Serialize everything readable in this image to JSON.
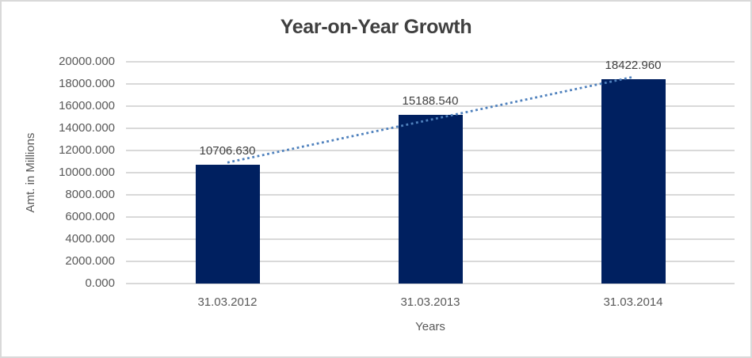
{
  "window": {
    "background": "#FFFFFF",
    "border_color": "#D9D9D9"
  },
  "chart_data": {
    "type": "bar",
    "title": "Year-on-Year Growth",
    "categories": [
      "31.03.2012",
      "31.03.2013",
      "31.03.2014"
    ],
    "values": [
      10706.63,
      15188.54,
      18422.96
    ],
    "data_labels": [
      "10706.630",
      "15188.540",
      "18422.960"
    ],
    "xlabel": "Years",
    "ylabel": "Amt. in Millions",
    "ylim": [
      0,
      20000
    ],
    "ytick_step": 2000,
    "ytick_labels": [
      "20000.000",
      "18000.000",
      "16000.000",
      "14000.000",
      "12000.000",
      "10000.000",
      "8000.000",
      "6000.000",
      "4000.000",
      "2000.000",
      "0.000"
    ],
    "grid": true,
    "legend": "none",
    "trendline": {
      "type": "linear",
      "style": "dotted",
      "span": "first-to-last-category"
    },
    "colors": {
      "bar": "#002060",
      "trendline": "#4F81BD",
      "gridline": "#D9D9D9",
      "axis_line": "#D9D9D9",
      "title_text": "#404040",
      "tick_text": "#595959",
      "data_label_text": "#404040"
    }
  }
}
